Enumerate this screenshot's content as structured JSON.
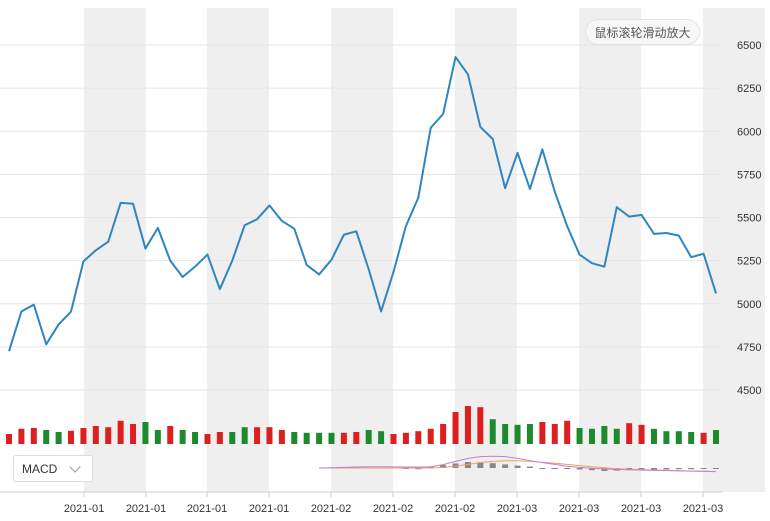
{
  "ui": {
    "zoom_hint": "鼠标滚轮滑动放大",
    "indicator_select": "MACD"
  },
  "chart_data": {
    "type": "line",
    "title": "",
    "xlabel": "",
    "ylabel": "",
    "ylim": [
      4500,
      6500
    ],
    "y_ticks": [
      4500,
      4750,
      5000,
      5250,
      5500,
      5750,
      6000,
      6250,
      6500
    ],
    "y_tick_labels": [
      "4500",
      "4750",
      "5000",
      "5250",
      "5500",
      "5750",
      "6000",
      "6250",
      "6500"
    ],
    "x_tick_labels": [
      "2021-01",
      "2021-01",
      "2021-01",
      "2021-01",
      "2021-02",
      "2021-02",
      "2021-02",
      "2021-03",
      "2021-03",
      "2021-03",
      "2021-03"
    ],
    "color": "#2e86c1",
    "values": [
      4725,
      4955,
      4995,
      4765,
      4880,
      4955,
      5245,
      5310,
      5360,
      5585,
      5580,
      5320,
      5440,
      5250,
      5155,
      5215,
      5285,
      5085,
      5250,
      5455,
      5490,
      5570,
      5480,
      5435,
      5225,
      5170,
      5255,
      5400,
      5420,
      5200,
      4955,
      5185,
      5450,
      5615,
      6020,
      6100,
      6430,
      6330,
      6025,
      5955,
      5670,
      5875,
      5665,
      5895,
      5650,
      5450,
      5285,
      5235,
      5215,
      5560,
      5505,
      5515,
      5405,
      5410,
      5395,
      5270,
      5290,
      5060
    ],
    "volume": {
      "colors": [
        "red",
        "red",
        "red",
        "green",
        "green",
        "red",
        "red",
        "red",
        "red",
        "red",
        "red",
        "green",
        "green",
        "red",
        "green",
        "green",
        "red",
        "red",
        "green",
        "green",
        "red",
        "red",
        "red",
        "green",
        "green",
        "green",
        "green",
        "red",
        "red",
        "green",
        "green",
        "red",
        "red",
        "red",
        "red",
        "red",
        "red",
        "red",
        "red",
        "green",
        "green",
        "green",
        "green",
        "red",
        "red",
        "red",
        "green",
        "green",
        "green",
        "green",
        "red",
        "red",
        "green",
        "green",
        "green",
        "green",
        "red",
        "green"
      ],
      "heights": [
        0.25,
        0.38,
        0.4,
        0.35,
        0.3,
        0.33,
        0.4,
        0.45,
        0.42,
        0.58,
        0.5,
        0.55,
        0.35,
        0.45,
        0.35,
        0.3,
        0.25,
        0.3,
        0.3,
        0.42,
        0.42,
        0.42,
        0.35,
        0.3,
        0.28,
        0.28,
        0.28,
        0.28,
        0.3,
        0.35,
        0.32,
        0.25,
        0.28,
        0.32,
        0.38,
        0.5,
        0.8,
        0.95,
        0.92,
        0.62,
        0.5,
        0.48,
        0.5,
        0.55,
        0.5,
        0.58,
        0.4,
        0.38,
        0.45,
        0.38,
        0.52,
        0.48,
        0.38,
        0.32,
        0.32,
        0.3,
        0.28,
        0.35
      ]
    },
    "macd": {
      "name": "MACD",
      "dif": [
        0,
        0,
        0,
        0,
        0,
        0,
        0,
        0,
        0,
        0,
        0,
        0,
        0,
        0,
        0,
        0,
        0,
        0,
        0,
        0,
        0,
        0,
        0,
        0,
        0,
        0,
        0.02,
        0.05,
        0.08,
        0.1,
        0.1,
        0.09,
        0.08,
        0.07,
        0.1,
        0.28,
        0.55,
        0.8,
        0.95,
        0.98,
        0.95,
        0.8,
        0.62,
        0.45,
        0.3,
        0.15,
        0.05,
        -0.02,
        -0.08,
        -0.12,
        -0.15,
        -0.18,
        -0.2,
        -0.22,
        -0.24,
        -0.26,
        -0.28,
        -0.3
      ],
      "dea": [
        0,
        0,
        0,
        0,
        0,
        0,
        0,
        0,
        0,
        0,
        0,
        0,
        0,
        0,
        0,
        0,
        0,
        0,
        0,
        0,
        0,
        0,
        0,
        0,
        0,
        0,
        0,
        0,
        0,
        0,
        0,
        0,
        0,
        0,
        0,
        0.05,
        0.15,
        0.3,
        0.45,
        0.55,
        0.6,
        0.6,
        0.55,
        0.48,
        0.4,
        0.3,
        0.2,
        0.1,
        0.02,
        -0.05,
        -0.1,
        -0.14,
        -0.17,
        -0.2,
        -0.23,
        -0.25,
        -0.27,
        -0.3
      ],
      "hist": [
        0,
        0,
        0,
        0,
        0,
        0,
        0,
        0,
        0,
        0,
        0,
        0,
        0,
        0,
        0,
        0,
        0,
        0,
        0,
        0,
        0,
        0,
        0,
        0,
        0,
        0,
        0,
        0,
        0,
        0,
        0,
        0,
        -0.08,
        -0.1,
        0.12,
        0.25,
        0.38,
        0.5,
        0.48,
        0.4,
        0.3,
        0.2,
        0.12,
        -0.02,
        -0.05,
        -0.08,
        -0.12,
        -0.18,
        -0.25,
        -0.22,
        -0.18,
        -0.16,
        -0.14,
        -0.12,
        -0.1,
        -0.1,
        -0.08,
        -0.08
      ]
    }
  }
}
